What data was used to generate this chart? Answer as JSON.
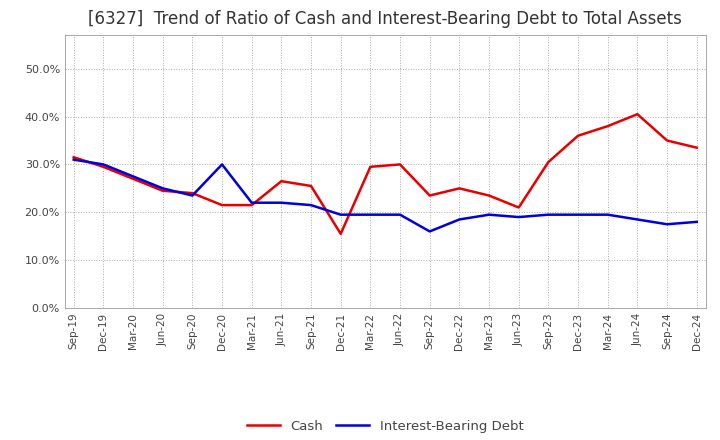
{
  "title": "[6327]  Trend of Ratio of Cash and Interest-Bearing Debt to Total Assets",
  "x_labels": [
    "Sep-19",
    "Dec-19",
    "Mar-20",
    "Jun-20",
    "Sep-20",
    "Dec-20",
    "Mar-21",
    "Jun-21",
    "Sep-21",
    "Dec-21",
    "Mar-22",
    "Jun-22",
    "Sep-22",
    "Dec-22",
    "Mar-23",
    "Jun-23",
    "Sep-23",
    "Dec-23",
    "Mar-24",
    "Jun-24",
    "Sep-24",
    "Dec-24"
  ],
  "cash": [
    0.315,
    0.295,
    0.27,
    0.245,
    0.24,
    0.215,
    0.215,
    0.265,
    0.255,
    0.155,
    0.295,
    0.3,
    0.235,
    0.25,
    0.235,
    0.21,
    0.305,
    0.36,
    0.38,
    0.405,
    0.35,
    0.335
  ],
  "interest_bearing_debt": [
    0.31,
    0.3,
    0.275,
    0.25,
    0.235,
    0.3,
    0.22,
    0.22,
    0.215,
    0.195,
    0.195,
    0.195,
    0.16,
    0.185,
    0.195,
    0.19,
    0.195,
    0.195,
    0.195,
    0.185,
    0.175,
    0.18
  ],
  "cash_color": "#e80000",
  "debt_color": "#0000dd",
  "ylim": [
    0.0,
    0.57
  ],
  "yticks": [
    0.0,
    0.1,
    0.2,
    0.3,
    0.4,
    0.5
  ],
  "background_color": "#ffffff",
  "grid_color": "#aaaaaa",
  "title_fontsize": 12,
  "legend_labels": [
    "Cash",
    "Interest-Bearing Debt"
  ]
}
